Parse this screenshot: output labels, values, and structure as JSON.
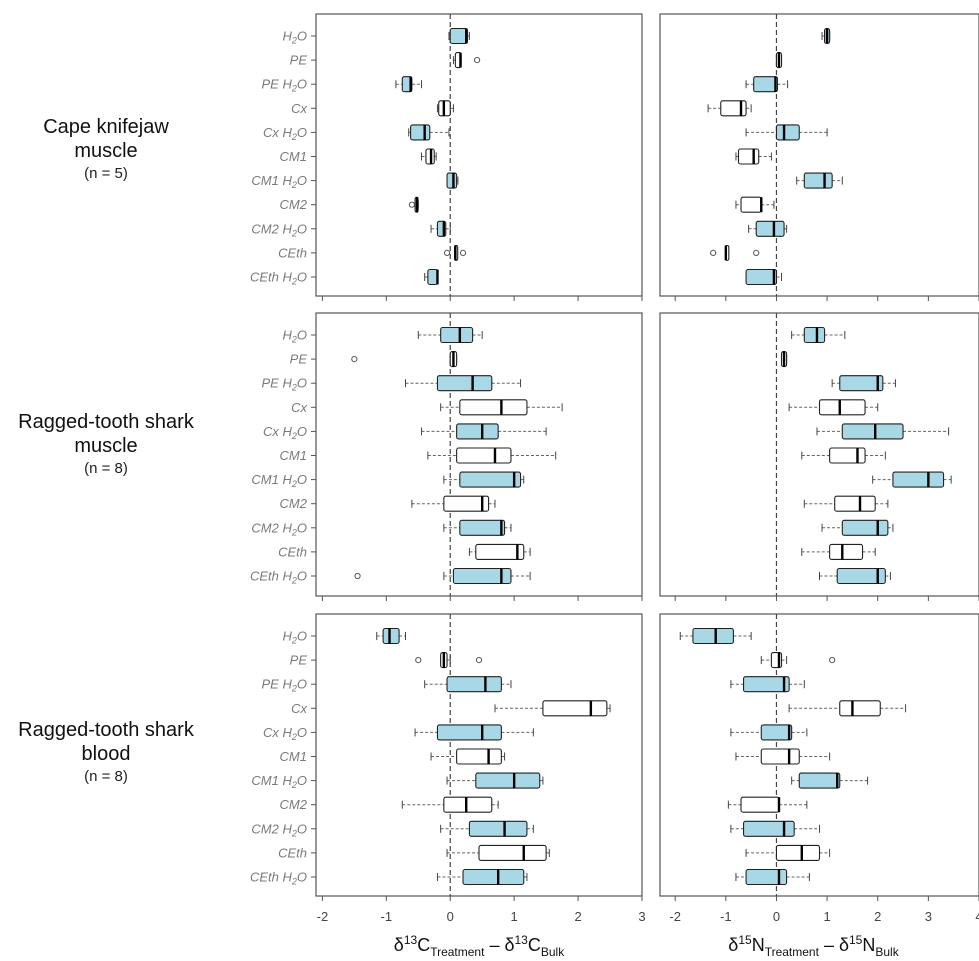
{
  "colors": {
    "filled": "#a8d8e6",
    "open": "#ffffff",
    "stroke": "#222222",
    "frame": "#555555",
    "ref_line": "#444444",
    "label": "#7a7a7a"
  },
  "legend_note": "",
  "rows": [
    {
      "title_lines": [
        "Cape knifejaw",
        "muscle"
      ],
      "n_label": "(n = 5)"
    },
    {
      "title_lines": [
        "Ragged-tooth shark",
        "muscle"
      ],
      "n_label": "(n = 8)"
    },
    {
      "title_lines": [
        "Ragged-tooth shark",
        "blood"
      ],
      "n_label": "(n = 8)"
    }
  ],
  "axes": {
    "left": {
      "label_main": "δ13C",
      "sub_treatment": "Treatment",
      "sub_bulk": "Bulk",
      "sup": "13",
      "element": "C",
      "ticks": [
        "-2",
        "-1",
        "0",
        "1",
        "2",
        "3"
      ],
      "tick_values": [
        -2,
        -1,
        0,
        1,
        2,
        3
      ],
      "xlim": [
        -2.1,
        3.0
      ]
    },
    "right": {
      "label_main": "δ15N",
      "sub_treatment": "Treatment",
      "sub_bulk": "Bulk",
      "sup": "15",
      "element": "N",
      "ticks": [
        "-2",
        "-1",
        "0",
        "1",
        "2",
        "3",
        "4"
      ],
      "tick_values": [
        -2,
        -1,
        0,
        1,
        2,
        3,
        4
      ],
      "xlim": [
        -2.3,
        4.0
      ]
    }
  },
  "chart_data": {
    "type": "boxplot",
    "categories": [
      "H2O",
      "PE",
      "PE H2O",
      "Cx",
      "Cx H2O",
      "CM1",
      "CM1 H2O",
      "CM2",
      "CM2 H2O",
      "CEth",
      "CEth H2O"
    ],
    "category_labels": [
      {
        "base": "H",
        "sub": "2",
        "rest": "O"
      },
      {
        "base": "PE",
        "sub": "",
        "rest": ""
      },
      {
        "base": "PE H",
        "sub": "2",
        "rest": "O"
      },
      {
        "base": "Cx",
        "sub": "",
        "rest": ""
      },
      {
        "base": "Cx H",
        "sub": "2",
        "rest": "O"
      },
      {
        "base": "CM1",
        "sub": "",
        "rest": ""
      },
      {
        "base": "CM1 H",
        "sub": "2",
        "rest": "O"
      },
      {
        "base": "CM2",
        "sub": "",
        "rest": ""
      },
      {
        "base": "CM2 H",
        "sub": "2",
        "rest": "O"
      },
      {
        "base": "CEth",
        "sub": "",
        "rest": ""
      },
      {
        "base": "CEth H",
        "sub": "2",
        "rest": "O"
      }
    ],
    "filled": [
      true,
      false,
      true,
      false,
      true,
      false,
      true,
      false,
      true,
      false,
      true
    ],
    "panels": [
      {
        "row": 0,
        "isotope": "d13C",
        "boxes": [
          {
            "wlo": -0.02,
            "q1": 0.0,
            "med": 0.25,
            "q3": 0.27,
            "whi": 0.3,
            "out": []
          },
          {
            "wlo": 0.05,
            "q1": 0.08,
            "med": 0.16,
            "q3": 0.17,
            "whi": 0.17,
            "out": [
              0.42
            ]
          },
          {
            "wlo": -0.85,
            "q1": -0.75,
            "med": -0.62,
            "q3": -0.6,
            "whi": -0.45,
            "out": []
          },
          {
            "wlo": -0.2,
            "q1": -0.18,
            "med": -0.1,
            "q3": 0.0,
            "whi": 0.05,
            "out": []
          },
          {
            "wlo": -0.65,
            "q1": -0.62,
            "med": -0.4,
            "q3": -0.32,
            "whi": -0.02,
            "out": []
          },
          {
            "wlo": -0.45,
            "q1": -0.38,
            "med": -0.3,
            "q3": -0.25,
            "whi": -0.22,
            "out": []
          },
          {
            "wlo": -0.02,
            "q1": -0.05,
            "med": 0.05,
            "q3": 0.1,
            "whi": 0.12,
            "out": []
          },
          {
            "wlo": -0.55,
            "q1": -0.55,
            "med": -0.52,
            "q3": -0.52,
            "whi": -0.5,
            "out": [
              -0.6
            ]
          },
          {
            "wlo": -0.3,
            "q1": -0.2,
            "med": -0.1,
            "q3": -0.07,
            "whi": 0.0,
            "out": []
          },
          {
            "wlo": 0.07,
            "q1": 0.07,
            "med": 0.08,
            "q3": 0.09,
            "whi": 0.09,
            "out": [
              -0.05,
              0.2
            ]
          },
          {
            "wlo": -0.4,
            "q1": -0.35,
            "med": -0.2,
            "q3": -0.2,
            "whi": -0.2,
            "out": []
          }
        ]
      },
      {
        "row": 0,
        "isotope": "d15N",
        "boxes": [
          {
            "wlo": 0.9,
            "q1": 0.95,
            "med": 1.0,
            "q3": 1.05,
            "whi": 1.05,
            "out": []
          },
          {
            "wlo": 0.0,
            "q1": 0.0,
            "med": 0.05,
            "q3": 0.1,
            "whi": 0.1,
            "out": []
          },
          {
            "wlo": -0.6,
            "q1": -0.45,
            "med": -0.02,
            "q3": 0.02,
            "whi": 0.22,
            "out": []
          },
          {
            "wlo": -1.35,
            "q1": -1.1,
            "med": -0.7,
            "q3": -0.6,
            "whi": -0.5,
            "out": []
          },
          {
            "wlo": -0.6,
            "q1": 0.0,
            "med": 0.15,
            "q3": 0.45,
            "whi": 1.0,
            "out": []
          },
          {
            "wlo": -0.8,
            "q1": -0.75,
            "med": -0.45,
            "q3": -0.35,
            "whi": -0.1,
            "out": []
          },
          {
            "wlo": 0.4,
            "q1": 0.55,
            "med": 0.95,
            "q3": 1.1,
            "whi": 1.3,
            "out": []
          },
          {
            "wlo": -0.8,
            "q1": -0.7,
            "med": -0.3,
            "q3": -0.3,
            "whi": -0.05,
            "out": []
          },
          {
            "wlo": -0.55,
            "q1": -0.4,
            "med": -0.05,
            "q3": 0.15,
            "whi": 0.2,
            "out": []
          },
          {
            "wlo": -1.0,
            "q1": -1.0,
            "med": -1.0,
            "q3": -0.95,
            "whi": -0.95,
            "out": [
              -1.25,
              -0.4
            ]
          },
          {
            "wlo": -0.55,
            "q1": -0.6,
            "med": -0.05,
            "q3": 0.0,
            "whi": 0.1,
            "out": []
          }
        ]
      },
      {
        "row": 1,
        "isotope": "d13C",
        "boxes": [
          {
            "wlo": -0.5,
            "q1": -0.15,
            "med": 0.15,
            "q3": 0.35,
            "whi": 0.5,
            "out": []
          },
          {
            "wlo": 0.0,
            "q1": 0.0,
            "med": 0.05,
            "q3": 0.1,
            "whi": 0.1,
            "out": [
              -1.5
            ]
          },
          {
            "wlo": -0.7,
            "q1": -0.2,
            "med": 0.35,
            "q3": 0.65,
            "whi": 1.1,
            "out": []
          },
          {
            "wlo": -0.15,
            "q1": 0.15,
            "med": 0.8,
            "q3": 1.2,
            "whi": 1.75,
            "out": []
          },
          {
            "wlo": -0.45,
            "q1": 0.1,
            "med": 0.5,
            "q3": 0.75,
            "whi": 1.5,
            "out": []
          },
          {
            "wlo": -0.35,
            "q1": 0.1,
            "med": 0.7,
            "q3": 0.95,
            "whi": 1.65,
            "out": []
          },
          {
            "wlo": -0.1,
            "q1": 0.15,
            "med": 1.0,
            "q3": 1.1,
            "whi": 1.15,
            "out": []
          },
          {
            "wlo": -0.6,
            "q1": -0.1,
            "med": 0.5,
            "q3": 0.6,
            "whi": 0.7,
            "out": []
          },
          {
            "wlo": -0.1,
            "q1": 0.15,
            "med": 0.8,
            "q3": 0.85,
            "whi": 0.95,
            "out": []
          },
          {
            "wlo": 0.3,
            "q1": 0.4,
            "med": 1.05,
            "q3": 1.15,
            "whi": 1.25,
            "out": []
          },
          {
            "wlo": -0.1,
            "q1": 0.05,
            "med": 0.8,
            "q3": 0.95,
            "whi": 1.25,
            "out": [
              -1.45
            ]
          }
        ]
      },
      {
        "row": 1,
        "isotope": "d15N",
        "boxes": [
          {
            "wlo": 0.3,
            "q1": 0.55,
            "med": 0.8,
            "q3": 0.95,
            "whi": 1.35,
            "out": []
          },
          {
            "wlo": 0.1,
            "q1": 0.1,
            "med": 0.15,
            "q3": 0.2,
            "whi": 0.2,
            "out": []
          },
          {
            "wlo": 1.1,
            "q1": 1.25,
            "med": 2.0,
            "q3": 2.1,
            "whi": 2.35,
            "out": []
          },
          {
            "wlo": 0.25,
            "q1": 0.85,
            "med": 1.25,
            "q3": 1.75,
            "whi": 2.0,
            "out": []
          },
          {
            "wlo": 0.8,
            "q1": 1.3,
            "med": 1.95,
            "q3": 2.5,
            "whi": 3.4,
            "out": []
          },
          {
            "wlo": 0.5,
            "q1": 1.05,
            "med": 1.6,
            "q3": 1.75,
            "whi": 2.15,
            "out": []
          },
          {
            "wlo": 1.9,
            "q1": 2.3,
            "med": 3.0,
            "q3": 3.3,
            "whi": 3.45,
            "out": []
          },
          {
            "wlo": 0.55,
            "q1": 1.15,
            "med": 1.65,
            "q3": 1.95,
            "whi": 2.2,
            "out": []
          },
          {
            "wlo": 0.9,
            "q1": 1.3,
            "med": 2.0,
            "q3": 2.2,
            "whi": 2.3,
            "out": []
          },
          {
            "wlo": 0.5,
            "q1": 1.05,
            "med": 1.3,
            "q3": 1.7,
            "whi": 1.95,
            "out": []
          },
          {
            "wlo": 0.85,
            "q1": 1.2,
            "med": 2.0,
            "q3": 2.15,
            "whi": 2.25,
            "out": []
          }
        ]
      },
      {
        "row": 2,
        "isotope": "d13C",
        "boxes": [
          {
            "wlo": -1.15,
            "q1": -1.05,
            "med": -0.95,
            "q3": -0.8,
            "whi": -0.7,
            "out": []
          },
          {
            "wlo": -0.15,
            "q1": -0.15,
            "med": -0.1,
            "q3": -0.05,
            "whi": 0.0,
            "out": [
              -0.5,
              0.45
            ]
          },
          {
            "wlo": -0.4,
            "q1": -0.05,
            "med": 0.55,
            "q3": 0.8,
            "whi": 0.95,
            "out": []
          },
          {
            "wlo": 0.7,
            "q1": 1.45,
            "med": 2.2,
            "q3": 2.45,
            "whi": 2.5,
            "out": []
          },
          {
            "wlo": -0.55,
            "q1": -0.2,
            "med": 0.5,
            "q3": 0.8,
            "whi": 1.3,
            "out": []
          },
          {
            "wlo": -0.3,
            "q1": 0.1,
            "med": 0.6,
            "q3": 0.8,
            "whi": 0.85,
            "out": []
          },
          {
            "wlo": -0.05,
            "q1": 0.4,
            "med": 1.0,
            "q3": 1.4,
            "whi": 1.45,
            "out": []
          },
          {
            "wlo": -0.75,
            "q1": -0.1,
            "med": 0.25,
            "q3": 0.65,
            "whi": 0.75,
            "out": []
          },
          {
            "wlo": -0.15,
            "q1": 0.3,
            "med": 0.85,
            "q3": 1.2,
            "whi": 1.3,
            "out": []
          },
          {
            "wlo": -0.05,
            "q1": 0.45,
            "med": 1.15,
            "q3": 1.5,
            "whi": 1.55,
            "out": []
          },
          {
            "wlo": -0.2,
            "q1": 0.2,
            "med": 0.75,
            "q3": 1.15,
            "whi": 1.2,
            "out": []
          }
        ]
      },
      {
        "row": 2,
        "isotope": "d15N",
        "boxes": [
          {
            "wlo": -1.9,
            "q1": -1.65,
            "med": -1.2,
            "q3": -0.85,
            "whi": -0.5,
            "out": []
          },
          {
            "wlo": -0.3,
            "q1": -0.1,
            "med": 0.05,
            "q3": 0.1,
            "whi": 0.2,
            "out": [
              1.1
            ]
          },
          {
            "wlo": -0.9,
            "q1": -0.65,
            "med": 0.15,
            "q3": 0.25,
            "whi": 0.55,
            "out": []
          },
          {
            "wlo": 0.25,
            "q1": 1.25,
            "med": 1.5,
            "q3": 2.05,
            "whi": 2.55,
            "out": []
          },
          {
            "wlo": -0.9,
            "q1": -0.3,
            "med": 0.25,
            "q3": 0.3,
            "whi": 0.6,
            "out": []
          },
          {
            "wlo": -0.8,
            "q1": -0.3,
            "med": 0.25,
            "q3": 0.45,
            "whi": 1.05,
            "out": []
          },
          {
            "wlo": 0.3,
            "q1": 0.45,
            "med": 1.2,
            "q3": 1.25,
            "whi": 1.8,
            "out": []
          },
          {
            "wlo": -0.95,
            "q1": -0.7,
            "med": 0.05,
            "q3": 0.05,
            "whi": 0.6,
            "out": []
          },
          {
            "wlo": -0.9,
            "q1": -0.65,
            "med": 0.15,
            "q3": 0.35,
            "whi": 0.85,
            "out": []
          },
          {
            "wlo": -0.6,
            "q1": 0.0,
            "med": 0.5,
            "q3": 0.85,
            "whi": 1.05,
            "out": []
          },
          {
            "wlo": -0.8,
            "q1": -0.6,
            "med": 0.05,
            "q3": 0.2,
            "whi": 0.65,
            "out": []
          }
        ]
      }
    ]
  }
}
